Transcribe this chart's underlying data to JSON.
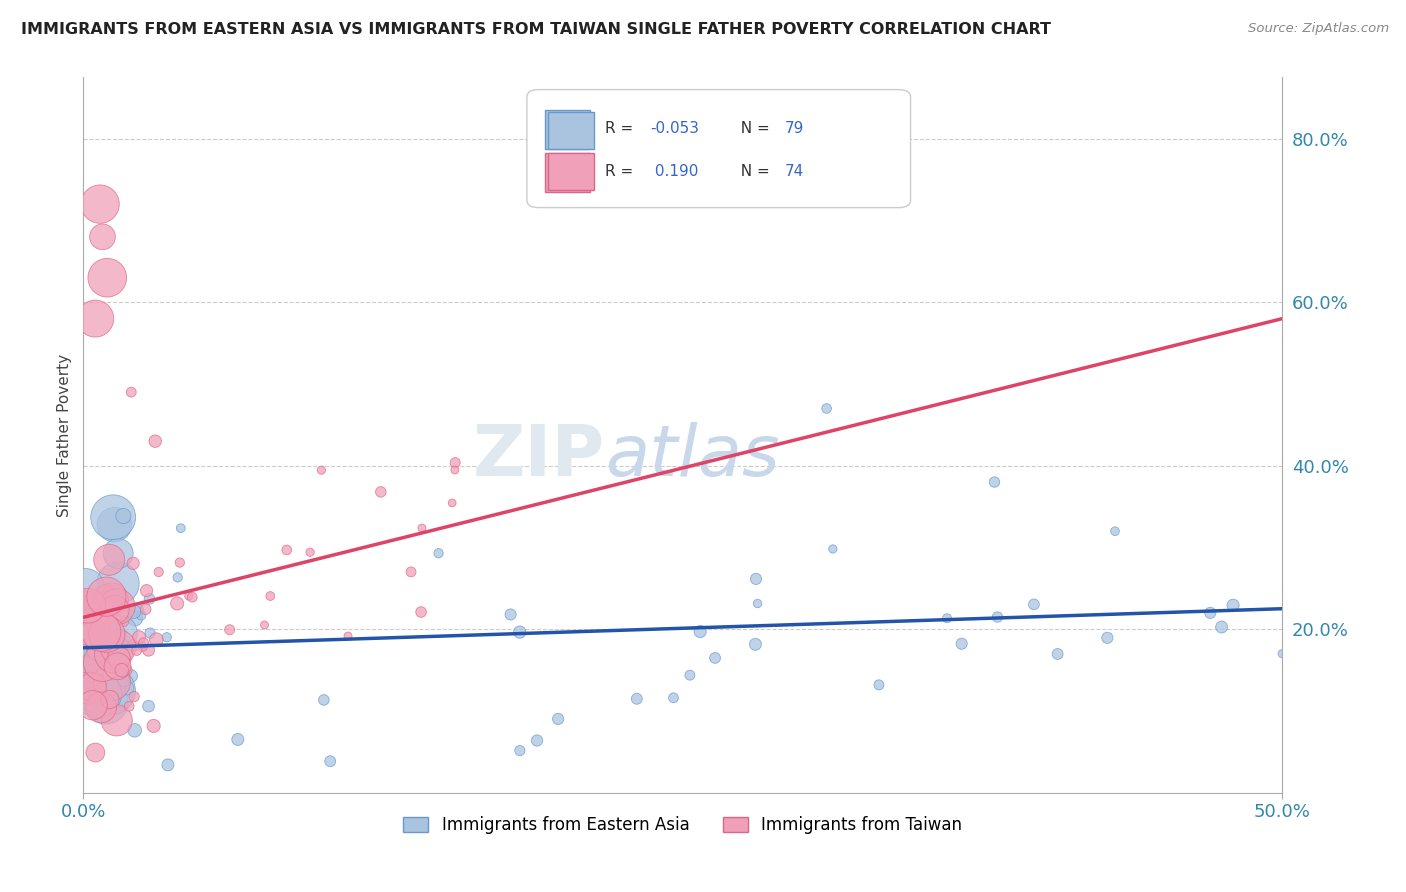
{
  "title": "IMMIGRANTS FROM EASTERN ASIA VS IMMIGRANTS FROM TAIWAN SINGLE FATHER POVERTY CORRELATION CHART",
  "source": "Source: ZipAtlas.com",
  "ylabel": "Single Father Poverty",
  "ylabel_right_ticks": [
    "80.0%",
    "60.0%",
    "40.0%",
    "20.0%"
  ],
  "ylabel_right_positions": [
    0.8,
    0.6,
    0.4,
    0.2
  ],
  "xlim": [
    0.0,
    0.5
  ],
  "ylim": [
    0.0,
    0.875
  ],
  "color_blue": "#aac4e0",
  "color_pink": "#f0a0b8",
  "color_blue_edge": "#6699cc",
  "color_pink_edge": "#dd6688",
  "color_trend_blue": "#2255aa",
  "color_trend_pink": "#dd4466",
  "r1": "-0.053",
  "n1": "79",
  "r2": "0.190",
  "n2": "74",
  "r_color": "#3366cc",
  "n_color": "#3366cc",
  "grid_color": "#cccccc",
  "title_color": "#222222",
  "source_color": "#888888",
  "label_color": "#3388aa",
  "watermark_zip_color": "#dddddd",
  "watermark_atlas_color": "#c8d8e8"
}
